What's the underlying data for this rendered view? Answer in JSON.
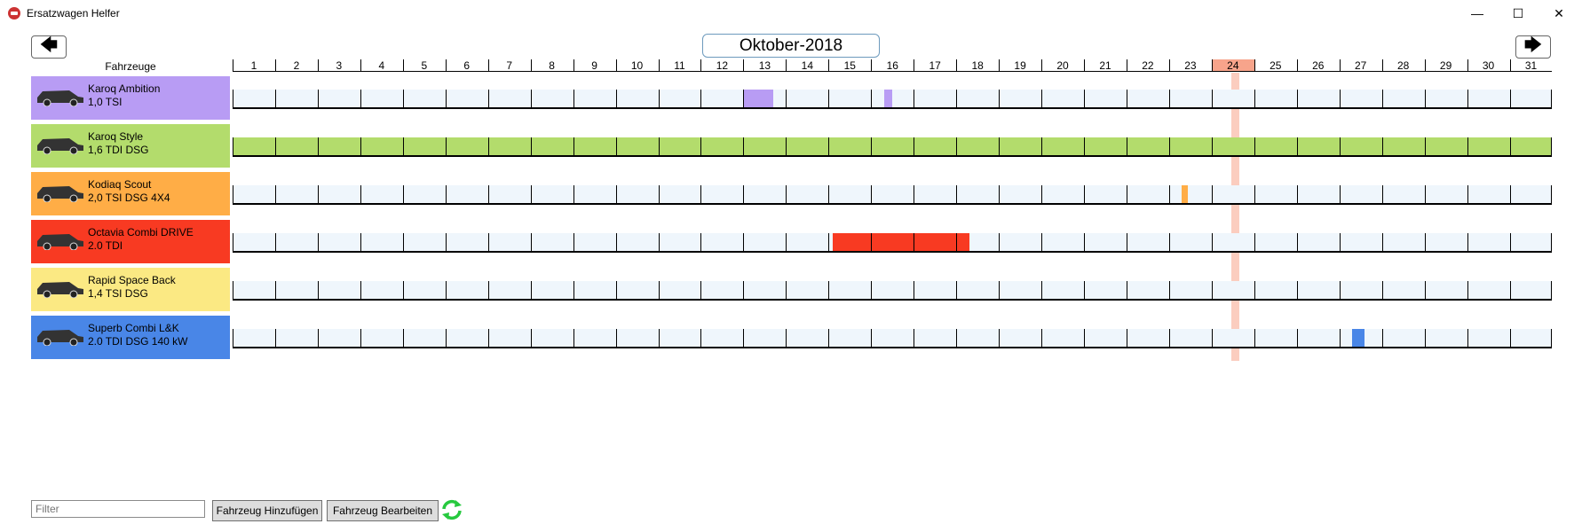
{
  "window": {
    "title": "Ersatzwagen Helfer",
    "minimize": "—",
    "maximize": "☐",
    "close": "✕"
  },
  "nav": {
    "prev": "🡄",
    "next": "🡆",
    "month": "Oktober-2018"
  },
  "header": {
    "vehicles_label": "Fahrzeuge"
  },
  "days": [
    "1",
    "2",
    "3",
    "4",
    "5",
    "6",
    "7",
    "8",
    "9",
    "10",
    "11",
    "12",
    "13",
    "14",
    "15",
    "16",
    "17",
    "18",
    "19",
    "20",
    "21",
    "22",
    "23",
    "24",
    "25",
    "26",
    "27",
    "28",
    "29",
    "30",
    "31"
  ],
  "today": 24,
  "vehicles": [
    {
      "name": "Karoq Ambition",
      "engine": "1,0 TSI",
      "color": "#b89cf4",
      "bookings": [
        {
          "start": 13.0,
          "end": 13.7
        },
        {
          "start": 16.3,
          "end": 16.5
        }
      ]
    },
    {
      "name": "Karoq Style",
      "engine": "1,6 TDI DSG",
      "color": "#b3dc6c",
      "bookings": [
        {
          "start": 1.0,
          "end": 32.0
        }
      ]
    },
    {
      "name": "Kodiaq Scout",
      "engine": "2,0 TSI DSG 4X4",
      "color": "#ffad46",
      "bookings": [
        {
          "start": 23.3,
          "end": 23.45
        }
      ]
    },
    {
      "name": "Octavia Combi DRIVE",
      "engine": "2.0 TDI",
      "color": "#f83a22",
      "bookings": [
        {
          "start": 15.1,
          "end": 18.3
        }
      ]
    },
    {
      "name": "Rapid Space Back",
      "engine": "1,4 TSI DSG",
      "color": "#fbe983",
      "bookings": []
    },
    {
      "name": "Superb Combi L&K",
      "engine": "2.0 TDI DSG 140 kW",
      "color": "#4986e7",
      "bookings": [
        {
          "start": 27.3,
          "end": 27.6
        }
      ]
    }
  ],
  "footer": {
    "filter_placeholder": "Filter",
    "add_button": "Fahrzeug Hinzufügen",
    "edit_button": "Fahrzeug Bearbeiten",
    "refresh_icon": "refresh-icon"
  }
}
